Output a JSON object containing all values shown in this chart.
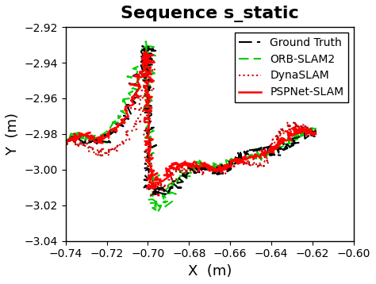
{
  "title": "Sequence s_static",
  "xlabel": "X  (m)",
  "ylabel": "Y  (m)",
  "xlim": [
    -0.74,
    -0.6
  ],
  "ylim": [
    -3.04,
    -2.92
  ],
  "xticks": [
    -0.74,
    -0.72,
    -0.7,
    -0.68,
    -0.66,
    -0.64,
    -0.62,
    -0.6
  ],
  "yticks": [
    -3.04,
    -3.02,
    -3.0,
    -2.98,
    -2.96,
    -2.94,
    -2.92
  ],
  "legend_labels": [
    "Ground Truth",
    "ORB-SLAM2",
    "DynaSLAM",
    "PSPNet-SLAM"
  ],
  "colors": {
    "ground_truth": "#000000",
    "orb_slam2": "#00cc00",
    "dyna_slam": "#cc0000",
    "pspnet_slam": "#ff0000"
  },
  "background_color": "#ffffff",
  "title_fontsize": 16,
  "label_fontsize": 13,
  "tick_fontsize": 10,
  "legend_fontsize": 10
}
